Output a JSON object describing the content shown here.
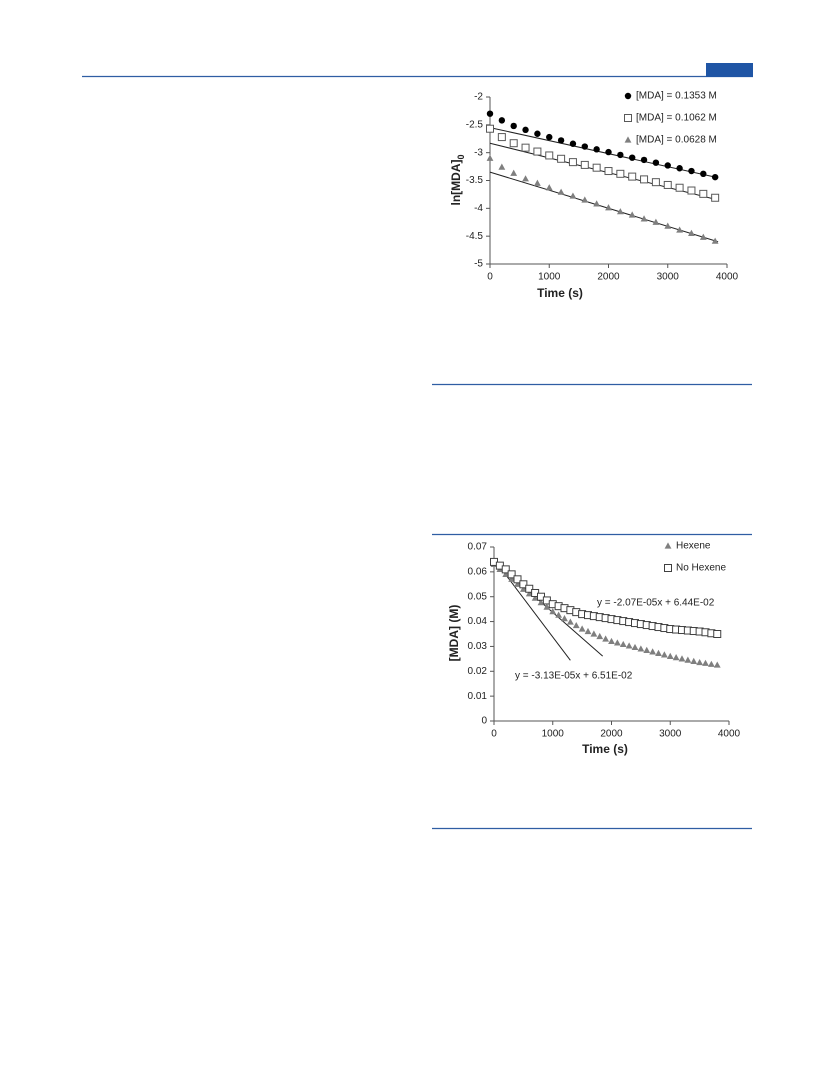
{
  "chart_data": [
    {
      "type": "scatter",
      "xlabel": "Time (s)",
      "ylabel": "ln[MDA]",
      "ylabel_sub": "0",
      "xlim": [
        0,
        4000
      ],
      "ylim": [
        -5,
        -2
      ],
      "xticks": [
        0,
        1000,
        2000,
        3000,
        4000
      ],
      "yticks": [
        -2,
        -2.5,
        -3,
        -3.5,
        -4,
        -4.5,
        -5
      ],
      "legend": "upper right",
      "x": [
        0,
        200,
        400,
        600,
        800,
        1000,
        1200,
        1400,
        1600,
        1800,
        2000,
        2200,
        2400,
        2600,
        2800,
        3000,
        3200,
        3400,
        3600,
        3800
      ],
      "series": [
        {
          "name": "[MDA] = 0.1353 M",
          "marker": "circle",
          "color": "#000000",
          "values": [
            -2.3,
            -2.42,
            -2.52,
            -2.59,
            -2.66,
            -2.72,
            -2.78,
            -2.84,
            -2.89,
            -2.94,
            -2.99,
            -3.04,
            -3.09,
            -3.13,
            -3.18,
            -3.23,
            -3.28,
            -3.33,
            -3.38,
            -3.44
          ]
        },
        {
          "name": "[MDA] = 0.1062 M",
          "marker": "square",
          "color": "#595959",
          "values": [
            -2.57,
            -2.72,
            -2.83,
            -2.91,
            -2.98,
            -3.05,
            -3.11,
            -3.17,
            -3.22,
            -3.27,
            -3.33,
            -3.38,
            -3.43,
            -3.48,
            -3.53,
            -3.58,
            -3.63,
            -3.68,
            -3.74,
            -3.81
          ]
        },
        {
          "name": "[MDA] = 0.0628 M",
          "marker": "triangle",
          "color": "#7f7f7f",
          "values": [
            -3.1,
            -3.26,
            -3.37,
            -3.47,
            -3.55,
            -3.63,
            -3.71,
            -3.78,
            -3.85,
            -3.92,
            -3.99,
            -4.06,
            -4.12,
            -4.19,
            -4.25,
            -4.32,
            -4.39,
            -4.45,
            -4.52,
            -4.59
          ]
        }
      ],
      "trendlines": [
        {
          "x": [
            0,
            3850
          ],
          "y": [
            -2.55,
            -3.45
          ]
        },
        {
          "x": [
            0,
            3850
          ],
          "y": [
            -2.83,
            -3.85
          ]
        },
        {
          "x": [
            0,
            3850
          ],
          "y": [
            -3.35,
            -4.6
          ]
        }
      ]
    },
    {
      "type": "scatter",
      "xlabel": "Time (s)",
      "ylabel": "[MDA] (M)",
      "xlim": [
        0,
        4000
      ],
      "ylim": [
        0,
        0.07
      ],
      "xticks": [
        0,
        1000,
        2000,
        3000,
        4000
      ],
      "yticks": [
        0,
        0.01,
        0.02,
        0.03,
        0.04,
        0.05,
        0.06,
        0.07
      ],
      "legend": "upper right",
      "x": [
        0,
        100,
        200,
        300,
        400,
        500,
        600,
        700,
        800,
        900,
        1000,
        1100,
        1200,
        1300,
        1400,
        1500,
        1600,
        1700,
        1800,
        1900,
        2000,
        2100,
        2200,
        2300,
        2400,
        2500,
        2600,
        2700,
        2800,
        2900,
        3000,
        3100,
        3200,
        3300,
        3400,
        3500,
        3600,
        3700,
        3800
      ],
      "series": [
        {
          "name": "Hexene",
          "marker": "triangle",
          "color": "#7f7f7f",
          "values": [
            0.063,
            0.061,
            0.059,
            0.057,
            0.055,
            0.053,
            0.0512,
            0.0494,
            0.0476,
            0.0458,
            0.044,
            0.0426,
            0.0412,
            0.0398,
            0.0384,
            0.037,
            0.036,
            0.035,
            0.034,
            0.033,
            0.032,
            0.0314,
            0.0308,
            0.0302,
            0.0296,
            0.029,
            0.0284,
            0.0278,
            0.0272,
            0.0266,
            0.026,
            0.0255,
            0.025,
            0.0245,
            0.024,
            0.0235,
            0.0232,
            0.0228,
            0.0225
          ]
        },
        {
          "name": "No Hexene",
          "marker": "square",
          "color": "#404040",
          "values": [
            0.064,
            0.0625,
            0.061,
            0.059,
            0.057,
            0.055,
            0.0532,
            0.0515,
            0.05,
            0.0485,
            0.047,
            0.0462,
            0.0454,
            0.0446,
            0.0438,
            0.043,
            0.0426,
            0.0422,
            0.0418,
            0.0414,
            0.041,
            0.0406,
            0.0402,
            0.0398,
            0.0394,
            0.039,
            0.0386,
            0.0382,
            0.0378,
            0.0374,
            0.037,
            0.0368,
            0.0366,
            0.0364,
            0.0362,
            0.036,
            0.0357,
            0.0353,
            0.035
          ]
        }
      ],
      "trendlines": [
        {
          "x": [
            0,
            1850
          ],
          "y": [
            0.0644,
            0.0261
          ]
        },
        {
          "x": [
            0,
            1300
          ],
          "y": [
            0.0651,
            0.0244
          ]
        }
      ],
      "annotations": [
        "y = -2.07E-05x + 6.44E-02",
        "y = -3.13E-05x + 6.51E-02"
      ]
    }
  ]
}
